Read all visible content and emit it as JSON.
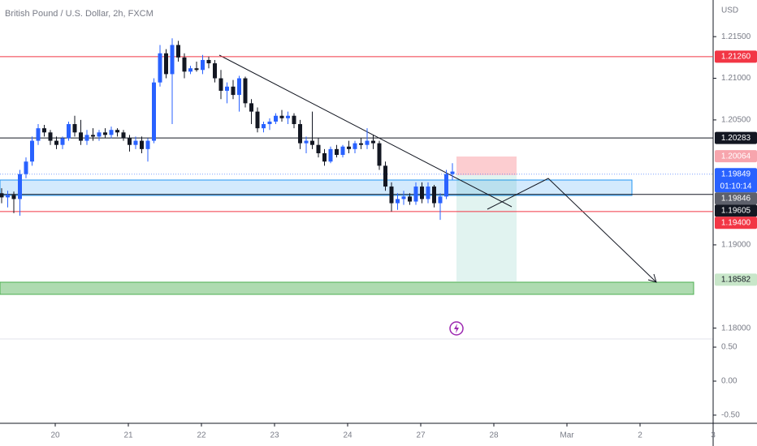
{
  "chart_data": {
    "type": "candlestick",
    "title": "British Pound / U.S. Dollar, 2h, FXCM",
    "currency": "USD",
    "up_color": "#2962ff",
    "down_color": "#131722",
    "ylim": [
      1.1787,
      1.2194
    ],
    "yticks": [
      {
        "value": 1.215,
        "label": "1.21500"
      },
      {
        "value": 1.21,
        "label": "1.21000"
      },
      {
        "value": 1.205,
        "label": "1.20500"
      },
      {
        "value": 1.19,
        "label": "1.19000"
      },
      {
        "value": 1.18,
        "label": "1.18000"
      }
    ],
    "x_labels": [
      "20",
      "21",
      "22",
      "23",
      "24",
      "27",
      "28",
      "Mar",
      "2",
      "3"
    ],
    "price_lines": [
      {
        "value": 1.2126,
        "label": "1.21260",
        "color": "#f23645"
      },
      {
        "value": 1.20283,
        "label": "1.20283",
        "color": "#131722"
      },
      {
        "value": 1.20064,
        "label": "1.20064",
        "color": "#f7a5ad"
      },
      {
        "value": 1.19849,
        "label": "1.19849",
        "color": "#2962ff"
      },
      {
        "value": 1.19846,
        "label": "1.19846",
        "color": "#5d606b"
      },
      {
        "value": 1.19605,
        "label": "1.19605",
        "color": "#131722"
      },
      {
        "value": 1.194,
        "label": "1.19400",
        "color": "#f23645"
      },
      {
        "value": 1.18582,
        "label": "1.18582",
        "color": "#c8e6c9"
      }
    ],
    "countdown": "01:10:14",
    "candles": [
      [
        1.1962,
        1.1968,
        1.195,
        1.1957
      ],
      [
        1.1957,
        1.1965,
        1.1945,
        1.196
      ],
      [
        1.196,
        1.1964,
        1.1938,
        1.1955
      ],
      [
        1.1955,
        1.199,
        1.1935,
        1.1985
      ],
      [
        1.1985,
        1.2005,
        1.198,
        1.2
      ],
      [
        1.2,
        1.203,
        1.1995,
        1.2025
      ],
      [
        1.2025,
        1.2045,
        1.202,
        1.204
      ],
      [
        1.204,
        1.2044,
        1.203,
        1.2035
      ],
      [
        1.2035,
        1.2038,
        1.202,
        1.2025
      ],
      [
        1.2025,
        1.203,
        1.2015,
        1.202
      ],
      [
        1.202,
        1.203,
        1.2015,
        1.2028
      ],
      [
        1.2028,
        1.2048,
        1.2025,
        1.2045
      ],
      [
        1.2045,
        1.2055,
        1.203,
        1.2035
      ],
      [
        1.2035,
        1.205,
        1.202,
        1.2025
      ],
      [
        1.2025,
        1.2038,
        1.202,
        1.2032
      ],
      [
        1.2032,
        1.204,
        1.2025,
        1.203
      ],
      [
        1.203,
        1.2038,
        1.2025,
        1.2035
      ],
      [
        1.2035,
        1.204,
        1.2028,
        1.2032
      ],
      [
        1.2032,
        1.2042,
        1.2028,
        1.2038
      ],
      [
        1.2038,
        1.204,
        1.203,
        1.2035
      ],
      [
        1.2035,
        1.2038,
        1.2025,
        1.2028
      ],
      [
        1.2028,
        1.2032,
        1.2012,
        1.202
      ],
      [
        1.202,
        1.203,
        1.2015,
        1.2025
      ],
      [
        1.2025,
        1.203,
        1.201,
        1.2015
      ],
      [
        1.2015,
        1.2028,
        1.2,
        1.2025
      ],
      [
        1.2025,
        1.21,
        1.2022,
        1.2095
      ],
      [
        1.2095,
        1.214,
        1.209,
        1.213
      ],
      [
        1.213,
        1.2135,
        1.21,
        1.2105
      ],
      [
        1.2105,
        1.2148,
        1.2045,
        1.214
      ],
      [
        1.214,
        1.2145,
        1.212,
        1.2125
      ],
      [
        1.2125,
        1.213,
        1.21,
        1.2108
      ],
      [
        1.2108,
        1.2115,
        1.2105,
        1.2112
      ],
      [
        1.2112,
        1.212,
        1.2108,
        1.211
      ],
      [
        1.211,
        1.2128,
        1.2105,
        1.2122
      ],
      [
        1.2122,
        1.2126,
        1.2112,
        1.2118
      ],
      [
        1.2118,
        1.2122,
        1.2095,
        1.21
      ],
      [
        1.21,
        1.211,
        1.2075,
        1.2085
      ],
      [
        1.2085,
        1.2095,
        1.207,
        1.209
      ],
      [
        1.209,
        1.2098,
        1.2075,
        1.208
      ],
      [
        1.208,
        1.2103,
        1.206,
        1.21
      ],
      [
        1.21,
        1.2102,
        1.2065,
        1.207
      ],
      [
        1.207,
        1.2075,
        1.2045,
        1.206
      ],
      [
        1.206,
        1.2065,
        1.2035,
        1.204
      ],
      [
        1.204,
        1.2048,
        1.2035,
        1.2045
      ],
      [
        1.2045,
        1.2052,
        1.2038,
        1.2048
      ],
      [
        1.2048,
        1.2058,
        1.2045,
        1.2055
      ],
      [
        1.2055,
        1.2062,
        1.2048,
        1.2052
      ],
      [
        1.2052,
        1.206,
        1.2045,
        1.2055
      ],
      [
        1.2055,
        1.2058,
        1.204,
        1.2045
      ],
      [
        1.2045,
        1.205,
        1.2015,
        1.2022
      ],
      [
        1.2022,
        1.203,
        1.201,
        1.2025
      ],
      [
        1.2025,
        1.206,
        1.2015,
        1.202
      ],
      [
        1.202,
        1.2028,
        1.2005,
        1.201
      ],
      [
        1.201,
        1.2015,
        1.1995,
        1.2
      ],
      [
        1.2,
        1.2018,
        1.1998,
        1.2015
      ],
      [
        1.2015,
        1.202,
        1.2005,
        1.2008
      ],
      [
        1.2008,
        1.202,
        1.2005,
        1.2018
      ],
      [
        1.2018,
        1.2025,
        1.201,
        1.2015
      ],
      [
        1.2015,
        1.2025,
        1.201,
        1.2022
      ],
      [
        1.2022,
        1.2028,
        1.2015,
        1.202
      ],
      [
        1.202,
        1.204,
        1.2015,
        1.2025
      ],
      [
        1.2025,
        1.2032,
        1.2015,
        1.2022
      ],
      [
        1.2022,
        1.2025,
        1.199,
        1.1995
      ],
      [
        1.1995,
        1.2,
        1.1965,
        1.197
      ],
      [
        1.197,
        1.1975,
        1.194,
        1.195
      ],
      [
        1.195,
        1.1962,
        1.1942,
        1.1955
      ],
      [
        1.1955,
        1.1965,
        1.1948,
        1.1958
      ],
      [
        1.1958,
        1.1962,
        1.1948,
        1.1952
      ],
      [
        1.1952,
        1.1975,
        1.1948,
        1.197
      ],
      [
        1.197,
        1.1975,
        1.195,
        1.1955
      ],
      [
        1.1955,
        1.1975,
        1.195,
        1.197
      ],
      [
        1.197,
        1.1972,
        1.1945,
        1.195
      ],
      [
        1.195,
        1.1962,
        1.193,
        1.1958
      ],
      [
        1.1958,
        1.199,
        1.1955,
        1.1985
      ],
      [
        1.1985,
        1.1998,
        1.1978,
        1.1988
      ]
    ],
    "indicator": {
      "ylim": [
        -0.62,
        0.62
      ],
      "yticks": [
        {
          "value": 0.5,
          "label": "0.50"
        },
        {
          "value": 0,
          "label": "0.00"
        },
        {
          "value": -0.5,
          "label": "-0.50"
        }
      ]
    }
  }
}
